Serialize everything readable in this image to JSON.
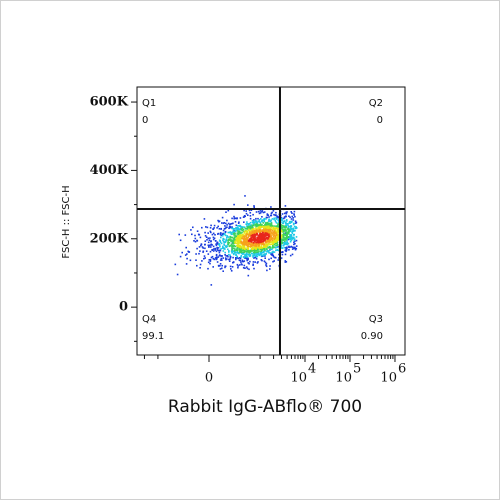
{
  "chart_data": {
    "type": "quadrant-dot-plot",
    "xlabel": "Rabbit IgG-ABflo® 700",
    "ylabel": "FSC-H :: FSC-H",
    "xscale": "biexponential",
    "xlim": [
      -2930,
      1670000
    ],
    "ylim": [
      -140000,
      644000
    ],
    "xticks": [
      0,
      {
        "value": 10000,
        "label": "10",
        "exponent": "4"
      },
      {
        "value": 100000,
        "label": "10",
        "exponent": "5"
      },
      {
        "value": 1000000,
        "label": "10",
        "exponent": "6"
      }
    ],
    "xminorticks": [
      -2000,
      -1000,
      1000,
      2000,
      3000,
      4000,
      5000,
      6000,
      7000,
      8000,
      9000,
      20000,
      30000,
      40000,
      50000,
      60000,
      70000,
      80000,
      90000,
      200000,
      300000,
      400000,
      500000,
      600000,
      700000,
      800000,
      900000
    ],
    "yticks": [
      0,
      {
        "value": 200000,
        "label": "200K"
      },
      {
        "value": 400000,
        "label": "400K"
      },
      {
        "value": 600000,
        "label": "600K"
      }
    ],
    "yminorticks": [
      -100000,
      100000,
      300000,
      500000
    ],
    "gate": {
      "x": 2780,
      "y": 287000
    },
    "quadrants": {
      "names": [
        "Q1",
        "Q2",
        "Q3",
        "Q4"
      ],
      "values": [
        0,
        0,
        0.9,
        99.1
      ],
      "value_labels": [
        "0",
        "0",
        "0.90",
        "99.1"
      ]
    }
  }
}
